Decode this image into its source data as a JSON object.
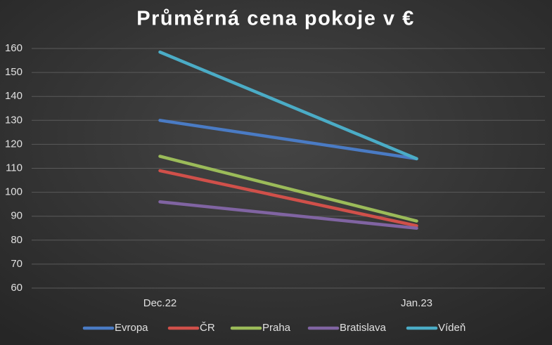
{
  "chart_data": {
    "type": "line",
    "title": "Průměrná cena pokoje v €",
    "categories": [
      "Dec.22",
      "Jan.23"
    ],
    "series": [
      {
        "name": "Evropa",
        "color": "#4a7bc4",
        "values": [
          130,
          114
        ]
      },
      {
        "name": "ČR",
        "color": "#d0504a",
        "values": [
          109,
          86
        ]
      },
      {
        "name": "Praha",
        "color": "#9bbb59",
        "values": [
          115,
          88
        ]
      },
      {
        "name": "Bratislava",
        "color": "#8064a2",
        "values": [
          96,
          85
        ]
      },
      {
        "name": "Vídeň",
        "color": "#4bacc6",
        "values": [
          158.5,
          114
        ]
      }
    ],
    "ylim": [
      60,
      160
    ],
    "yticks": [
      60,
      70,
      80,
      90,
      100,
      110,
      120,
      130,
      140,
      150,
      160
    ],
    "grid": true,
    "legend": "bottom"
  }
}
